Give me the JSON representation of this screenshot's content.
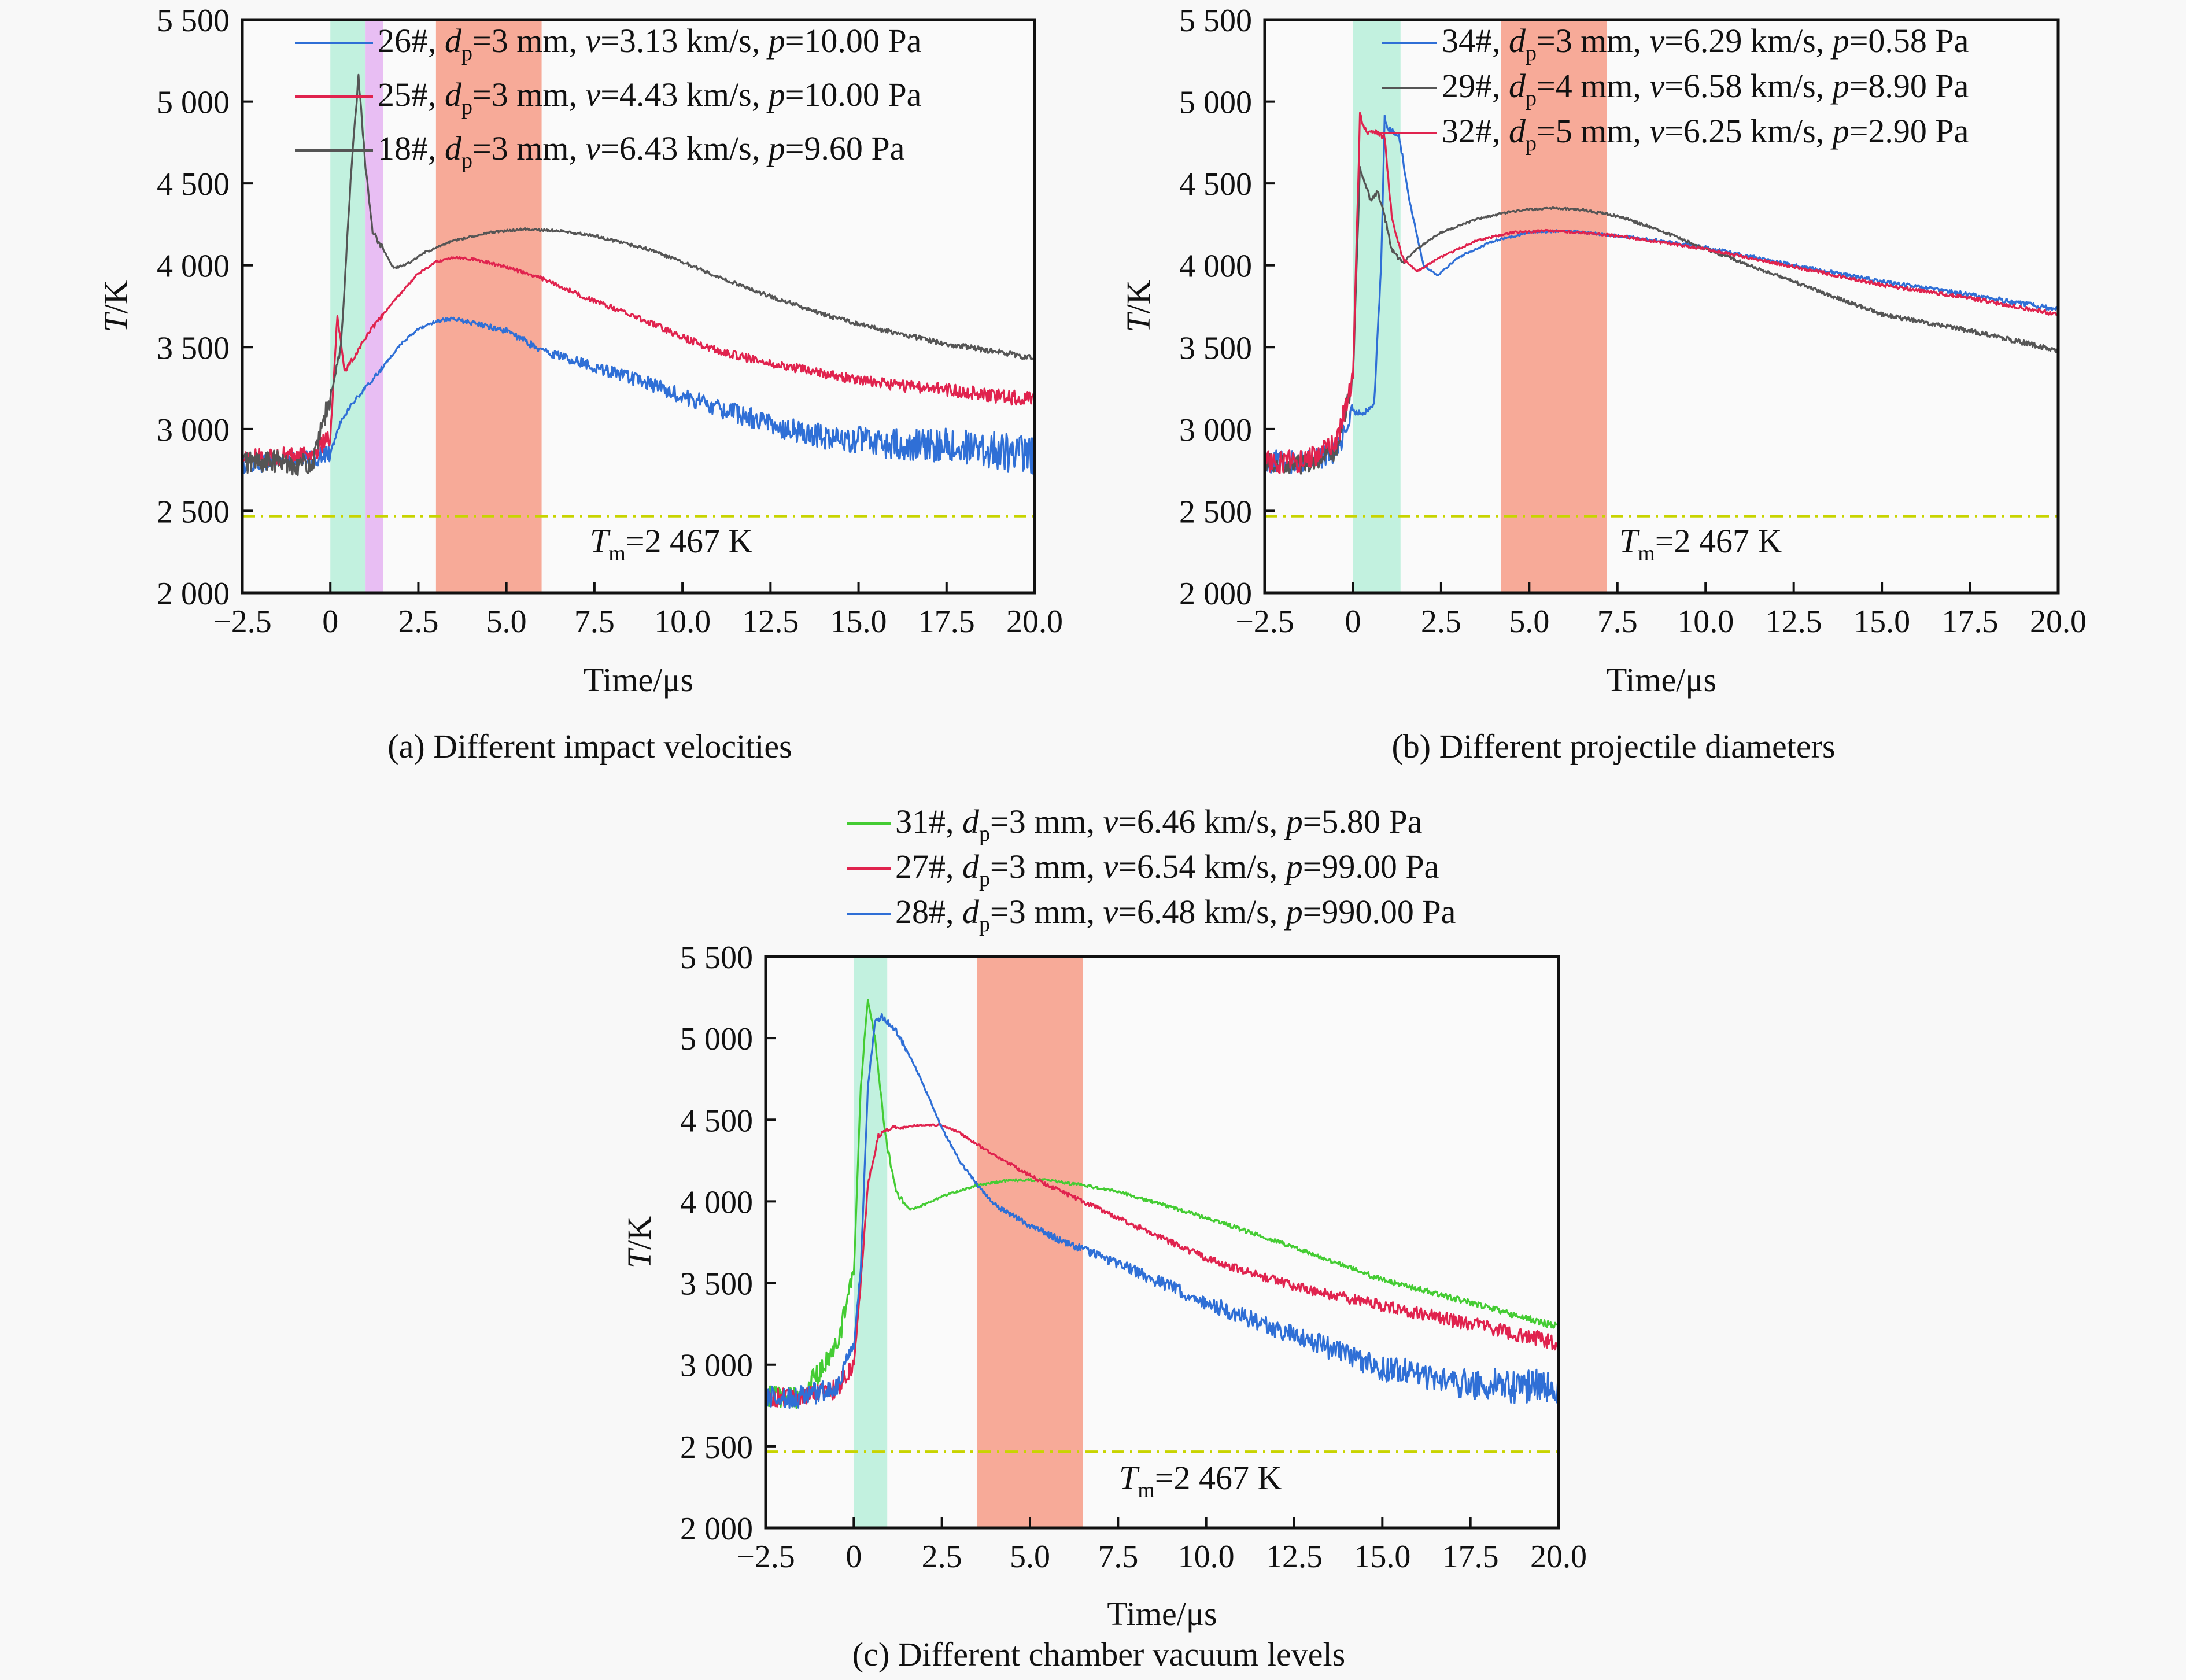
{
  "figure": {
    "panels_count": 3
  },
  "chart_data": [
    {
      "id": "a",
      "type": "line",
      "caption": "(a) Different impact velocities",
      "xlabel": "Time/μs",
      "ylabel_italic": "T",
      "ylabel_rest": "/K",
      "xlim": [
        -2.5,
        20.0
      ],
      "ylim": [
        2000,
        5500
      ],
      "xticks": [
        -2.5,
        0,
        2.5,
        5.0,
        7.5,
        10.0,
        12.5,
        15.0,
        17.5,
        20.0
      ],
      "xtick_labels": [
        "−2.5",
        "0",
        "2.5",
        "5.0",
        "7.5",
        "10.0",
        "12.5",
        "15.0",
        "17.5",
        "20.0"
      ],
      "yticks": [
        2000,
        2500,
        3000,
        3500,
        4000,
        4500,
        5000,
        5500
      ],
      "ytick_labels": [
        "2 000",
        "2 500",
        "3 000",
        "3 500",
        "4 000",
        "4 500",
        "5 000",
        "5 500"
      ],
      "grid": false,
      "legend_placement": "top-right",
      "bands": [
        {
          "x0": 0.0,
          "x1": 1.0,
          "color": "#bdf0dc"
        },
        {
          "x0": 1.0,
          "x1": 1.5,
          "color": "#e6b8f2"
        },
        {
          "x0": 3.0,
          "x1": 6.0,
          "color": "#f6a38f"
        }
      ],
      "reference_line": {
        "value": 2467,
        "label_T": "T",
        "label_sub": "m",
        "label_rest": "=2 467 K",
        "color": "#c8d400"
      },
      "series": [
        {
          "name": "26#",
          "label_id": "26#, ",
          "dp": "3",
          "v": "3.13",
          "p": "10.00",
          "color": "#2f6fd6",
          "noise": 55,
          "noise_late": 120,
          "x": [
            -2.5,
            -1.5,
            -0.5,
            0.0,
            0.3,
            0.6,
            1.0,
            1.5,
            2.0,
            2.5,
            3.0,
            3.5,
            4.0,
            5.0,
            6.0,
            7.5,
            9.0,
            10.0,
            11.0,
            12.5,
            14.0,
            15.0,
            16.0,
            17.5,
            19.0,
            20.0
          ],
          "y": [
            2780,
            2800,
            2820,
            2850,
            3050,
            3150,
            3250,
            3380,
            3520,
            3610,
            3660,
            3670,
            3650,
            3600,
            3480,
            3380,
            3280,
            3200,
            3130,
            3030,
            2950,
            2930,
            2910,
            2900,
            2870,
            2820
          ]
        },
        {
          "name": "25#",
          "label_id": "25#, ",
          "dp": "3",
          "v": "4.43",
          "p": "10.00",
          "color": "#e0234e",
          "noise": 55,
          "noise_late": 40,
          "x": [
            -2.5,
            -1.5,
            -0.5,
            0.0,
            0.2,
            0.4,
            0.7,
            1.0,
            1.5,
            2.0,
            2.5,
            3.0,
            3.5,
            4.0,
            5.0,
            6.0,
            7.5,
            9.0,
            10.0,
            11.0,
            12.5,
            14.0,
            15.0,
            16.0,
            17.5,
            19.0,
            20.0
          ],
          "y": [
            2820,
            2830,
            2850,
            2950,
            3700,
            3350,
            3450,
            3560,
            3700,
            3830,
            3950,
            4020,
            4050,
            4040,
            3990,
            3920,
            3780,
            3660,
            3560,
            3480,
            3400,
            3340,
            3300,
            3270,
            3240,
            3200,
            3180
          ]
        },
        {
          "name": "18#",
          "label_id": "18#, ",
          "dp": "3",
          "v": "6.43",
          "p": "9.60",
          "color": "#555555",
          "noise": 70,
          "noise_late": 12,
          "x": [
            -2.5,
            -1.5,
            -0.5,
            0.0,
            0.3,
            0.6,
            0.8,
            1.0,
            1.2,
            1.5,
            1.8,
            2.2,
            2.7,
            3.5,
            4.5,
            5.5,
            6.5,
            7.5,
            9.0,
            10.0,
            11.0,
            12.5,
            14.0,
            15.0,
            16.0,
            17.5,
            19.0,
            20.0
          ],
          "y": [
            2800,
            2800,
            2780,
            3200,
            3500,
            4600,
            5150,
            4600,
            4200,
            4100,
            3980,
            4010,
            4080,
            4150,
            4200,
            4220,
            4210,
            4180,
            4100,
            4020,
            3930,
            3810,
            3700,
            3640,
            3590,
            3520,
            3470,
            3430
          ]
        }
      ]
    },
    {
      "id": "b",
      "type": "line",
      "caption": "(b) Different projectile diameters",
      "xlabel": "Time/μs",
      "ylabel_italic": "T",
      "ylabel_rest": "/K",
      "xlim": [
        -2.5,
        20.0
      ],
      "ylim": [
        2000,
        5500
      ],
      "xticks": [
        -2.5,
        0,
        2.5,
        5.0,
        7.5,
        10.0,
        12.5,
        15.0,
        17.5,
        20.0
      ],
      "xtick_labels": [
        "−2.5",
        "0",
        "2.5",
        "5.0",
        "7.5",
        "10.0",
        "12.5",
        "15.0",
        "17.5",
        "20.0"
      ],
      "yticks": [
        2000,
        2500,
        3000,
        3500,
        4000,
        4500,
        5000,
        5500
      ],
      "ytick_labels": [
        "2 000",
        "2 500",
        "3 000",
        "3 500",
        "4 000",
        "4 500",
        "5 000",
        "5 500"
      ],
      "grid": false,
      "legend_placement": "top-right",
      "bands": [
        {
          "x0": 0.0,
          "x1": 1.35,
          "color": "#bdf0dc"
        },
        {
          "x0": 4.2,
          "x1": 7.2,
          "color": "#f6a38f"
        }
      ],
      "reference_line": {
        "value": 2467,
        "label_T": "T",
        "label_sub": "m",
        "label_rest": "=2 467 K",
        "color": "#c8d400"
      },
      "series": [
        {
          "name": "34#",
          "label_id": "34#, ",
          "dp": "3",
          "v": "6.29",
          "p": "0.58",
          "color": "#2f6fd6",
          "noise": 70,
          "noise_late": 10,
          "x": [
            -2.5,
            -1.5,
            -0.5,
            0.0,
            0.3,
            0.6,
            0.8,
            0.9,
            1.0,
            1.3,
            1.6,
            2.0,
            2.4,
            3.0,
            4.0,
            5.0,
            6.0,
            7.0,
            8.0,
            10.0,
            12.5,
            15.0,
            17.5,
            20.0
          ],
          "y": [
            2800,
            2800,
            2850,
            3100,
            3100,
            3150,
            4000,
            4900,
            4830,
            4800,
            4400,
            4000,
            3940,
            4050,
            4150,
            4200,
            4210,
            4190,
            4170,
            4110,
            4000,
            3900,
            3820,
            3730
          ]
        },
        {
          "name": "29#",
          "label_id": "29#, ",
          "dp": "4",
          "v": "6.58",
          "p": "8.90",
          "color": "#555555",
          "noise": 60,
          "noise_late": 10,
          "x": [
            -2.5,
            -1.5,
            -0.5,
            0.0,
            0.2,
            0.5,
            0.7,
            0.9,
            1.1,
            1.4,
            1.8,
            2.5,
            3.5,
            4.5,
            5.5,
            6.5,
            7.5,
            8.5,
            10.0,
            12.5,
            15.0,
            17.5,
            20.0
          ],
          "y": [
            2800,
            2780,
            2850,
            3300,
            4600,
            4400,
            4450,
            4300,
            4100,
            4010,
            4100,
            4200,
            4280,
            4330,
            4350,
            4340,
            4300,
            4230,
            4100,
            3900,
            3700,
            3600,
            3480
          ]
        },
        {
          "name": "32#",
          "label_id": "32#, ",
          "dp": "5",
          "v": "6.25",
          "p": "2.90",
          "color": "#e0234e",
          "noise": 70,
          "noise_late": 8,
          "x": [
            -2.5,
            -1.5,
            -0.5,
            0.0,
            0.2,
            0.4,
            0.6,
            0.9,
            1.1,
            1.4,
            1.8,
            2.5,
            3.5,
            4.5,
            5.5,
            6.5,
            7.5,
            10.0,
            12.5,
            15.0,
            17.5,
            20.0
          ],
          "y": [
            2800,
            2800,
            2900,
            3300,
            4920,
            4800,
            4820,
            4780,
            4300,
            4050,
            3960,
            4050,
            4150,
            4200,
            4210,
            4200,
            4180,
            4100,
            3990,
            3880,
            3800,
            3700
          ]
        }
      ]
    },
    {
      "id": "c",
      "type": "line",
      "caption": "(c) Different chamber vacuum levels",
      "xlabel": "Time/μs",
      "ylabel_italic": "T",
      "ylabel_rest": "/K",
      "xlim": [
        -2.5,
        20.0
      ],
      "ylim": [
        2000,
        5500
      ],
      "xticks": [
        -2.5,
        0,
        2.5,
        5.0,
        7.5,
        10.0,
        12.5,
        15.0,
        17.5,
        20.0
      ],
      "xtick_labels": [
        "−2.5",
        "0",
        "2.5",
        "5.0",
        "7.5",
        "10.0",
        "12.5",
        "15.0",
        "17.5",
        "20.0"
      ],
      "yticks": [
        2000,
        2500,
        3000,
        3500,
        4000,
        4500,
        5000,
        5500
      ],
      "ytick_labels": [
        "2 000",
        "2 500",
        "3 000",
        "3 500",
        "4 000",
        "4 500",
        "5 000",
        "5 500"
      ],
      "grid": false,
      "legend_placement": "top (above plot)",
      "bands": [
        {
          "x0": 0.0,
          "x1": 0.95,
          "color": "#bdf0dc"
        },
        {
          "x0": 3.5,
          "x1": 6.5,
          "color": "#f6a38f"
        }
      ],
      "reference_line": {
        "value": 2467,
        "label_T": "T",
        "label_sub": "m",
        "label_rest": "=2 467 K",
        "color": "#c8d400"
      },
      "series": [
        {
          "name": "31#",
          "label_id": "31#, ",
          "dp": "3",
          "v": "6.46",
          "p": "5.80",
          "color": "#44cc33",
          "noise": 70,
          "noise_late": 15,
          "x": [
            -2.5,
            -1.5,
            -0.5,
            0.0,
            0.2,
            0.4,
            0.6,
            0.9,
            1.2,
            1.6,
            2.0,
            2.5,
            3.5,
            4.5,
            5.5,
            6.5,
            7.5,
            10.0,
            12.5,
            15.0,
            17.5,
            20.0
          ],
          "y": [
            2800,
            2800,
            3100,
            3550,
            4700,
            5250,
            5000,
            4400,
            4050,
            3950,
            3980,
            4030,
            4100,
            4130,
            4130,
            4100,
            4060,
            3900,
            3720,
            3520,
            3380,
            3230
          ]
        },
        {
          "name": "27#",
          "label_id": "27#, ",
          "dp": "3",
          "v": "6.54",
          "p": "99.00",
          "color": "#e0234e",
          "noise": 60,
          "noise_late": 45,
          "x": [
            -2.5,
            -1.5,
            -0.5,
            0.0,
            0.2,
            0.4,
            0.7,
            1.0,
            1.5,
            2.0,
            2.5,
            3.0,
            3.5,
            4.5,
            5.5,
            6.5,
            7.5,
            10.0,
            12.5,
            15.0,
            17.5,
            20.0
          ],
          "y": [
            2800,
            2800,
            2850,
            3000,
            3500,
            4100,
            4400,
            4450,
            4460,
            4470,
            4470,
            4420,
            4350,
            4220,
            4100,
            4000,
            3900,
            3650,
            3480,
            3360,
            3250,
            3130
          ]
        },
        {
          "name": "28#",
          "label_id": "28#, ",
          "dp": "3",
          "v": "6.48",
          "p": "990.00",
          "color": "#2f6fd6",
          "noise": 70,
          "noise_late": 110,
          "x": [
            -2.5,
            -1.5,
            -0.5,
            0.0,
            0.2,
            0.4,
            0.6,
            0.8,
            1.2,
            1.8,
            2.5,
            3.0,
            3.5,
            4.0,
            5.0,
            6.0,
            7.5,
            10.0,
            12.5,
            15.0,
            17.5,
            20.0
          ],
          "y": [
            2800,
            2800,
            2850,
            3100,
            3600,
            4700,
            5100,
            5130,
            5050,
            4800,
            4450,
            4250,
            4100,
            3980,
            3850,
            3750,
            3620,
            3380,
            3180,
            2980,
            2880,
            2860
          ]
        }
      ]
    }
  ]
}
